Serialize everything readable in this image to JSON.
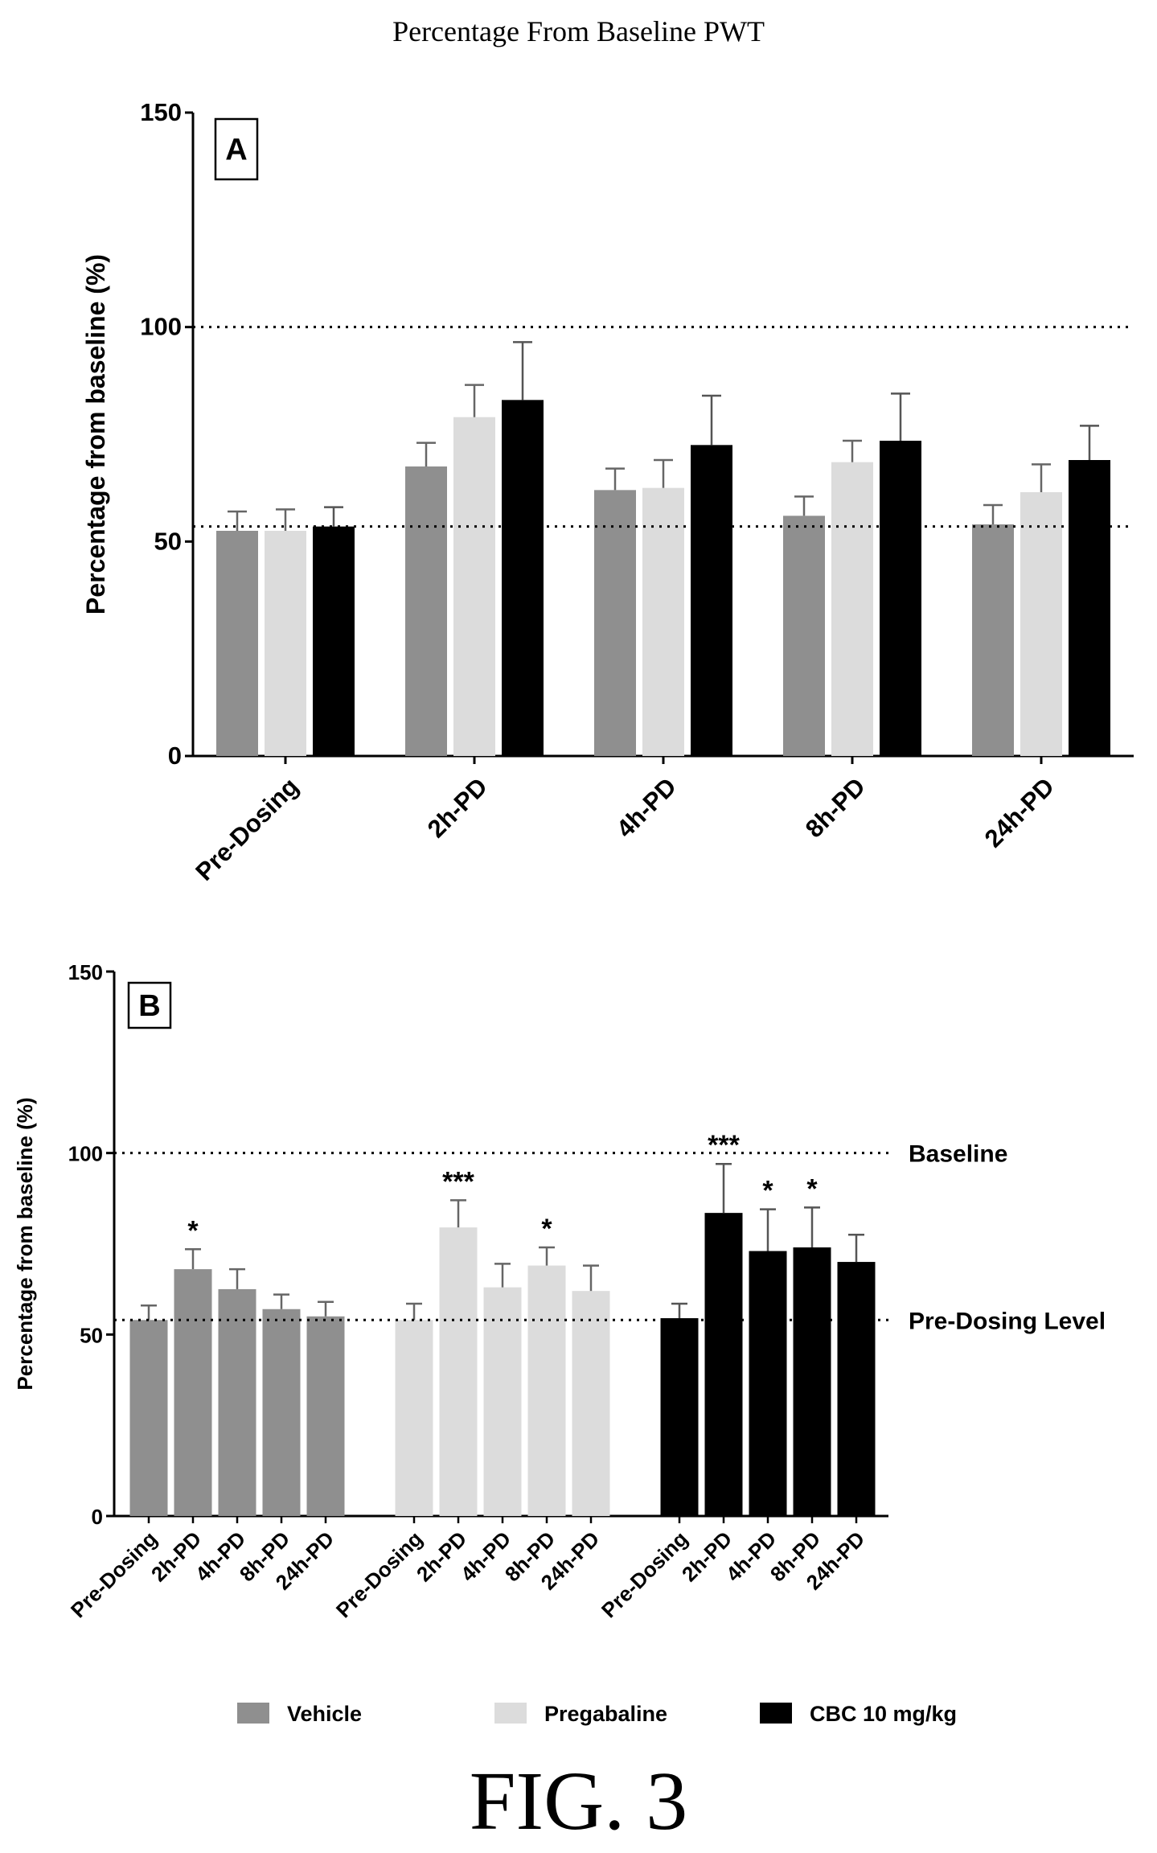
{
  "page_title": "Percentage From Baseline PWT",
  "figure_caption": "FIG. 3",
  "colors": {
    "Vehicle": "#8f8f8f",
    "Pregabaline": "#dcdcdc",
    "CBC 10 mg/kg": "#000000"
  },
  "legend": [
    "Vehicle",
    "Pregabaline",
    "CBC 10 mg/kg"
  ],
  "chart_data": [
    {
      "panel": "A",
      "type": "bar",
      "grouping": "by timepoint",
      "ylabel": "Percentage from baseline (%)",
      "ylim": [
        0,
        150
      ],
      "yticks": [
        0,
        50,
        100,
        150
      ],
      "categories": [
        "Pre-Dosing",
        "2h-PD",
        "4h-PD",
        "8h-PD",
        "24h-PD"
      ],
      "reference_lines": [
        {
          "y": 100,
          "label": ""
        },
        {
          "y": 53.5,
          "label": ""
        }
      ],
      "series": [
        {
          "name": "Vehicle",
          "values": [
            52.5,
            67.5,
            62,
            56,
            54
          ],
          "errors": [
            4.5,
            5.5,
            5,
            4.5,
            4.5
          ]
        },
        {
          "name": "Pregabaline",
          "values": [
            52.5,
            79,
            62.5,
            68.5,
            61.5
          ],
          "errors": [
            5,
            7.5,
            6.5,
            5,
            6.5
          ]
        },
        {
          "name": "CBC 10 mg/kg",
          "values": [
            53.5,
            83,
            72.5,
            73.5,
            69
          ],
          "errors": [
            4.5,
            13.5,
            11.5,
            11,
            8
          ]
        }
      ],
      "grid": false
    },
    {
      "panel": "B",
      "type": "bar",
      "grouping": "by treatment",
      "ylabel": "Percentage from baseline (%)",
      "ylim": [
        0,
        150
      ],
      "yticks": [
        0,
        50,
        100,
        150
      ],
      "categories": [
        "Pre-Dosing",
        "2h-PD",
        "4h-PD",
        "8h-PD",
        "24h-PD"
      ],
      "reference_lines": [
        {
          "y": 100,
          "label": "Baseline"
        },
        {
          "y": 54,
          "label": "Pre-Dosing Level"
        }
      ],
      "series": [
        {
          "name": "Vehicle",
          "values": [
            54,
            68,
            62.5,
            57,
            55
          ],
          "errors": [
            4,
            5.5,
            5.5,
            4,
            4
          ],
          "significance": [
            "",
            "*",
            "",
            "",
            ""
          ]
        },
        {
          "name": "Pregabaline",
          "values": [
            54,
            79.5,
            63,
            69,
            62
          ],
          "errors": [
            4.5,
            7.5,
            6.5,
            5,
            7
          ],
          "significance": [
            "",
            "***",
            "",
            "*",
            ""
          ]
        },
        {
          "name": "CBC 10 mg/kg",
          "values": [
            54.5,
            83.5,
            73,
            74,
            70
          ],
          "errors": [
            4,
            13.5,
            11.5,
            11,
            7.5
          ],
          "significance": [
            "",
            "***",
            "*",
            "*",
            ""
          ]
        }
      ],
      "grid": false,
      "legend_position": "bottom"
    }
  ]
}
